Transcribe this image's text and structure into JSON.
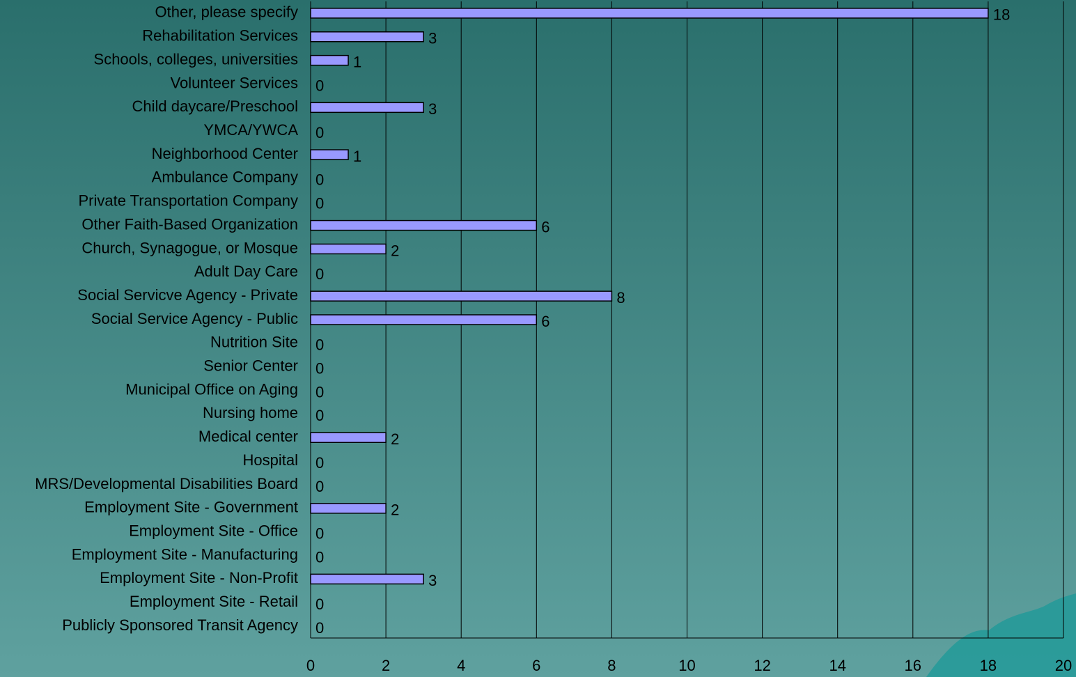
{
  "chart_data": {
    "type": "bar",
    "orientation": "horizontal",
    "categories": [
      "Other, please specify",
      "Rehabilitation Services",
      "Schools, colleges, universities",
      "Volunteer Services",
      "Child daycare/Preschool",
      "YMCA/YWCA",
      "Neighborhood Center",
      "Ambulance Company",
      "Private Transportation Company",
      "Other Faith-Based Organization",
      "Church, Synagogue, or Mosque",
      "Adult Day Care",
      "Social Servicve Agency - Private",
      "Social Service Agency - Public",
      "Nutrition Site",
      "Senior Center",
      "Municipal Office on Aging",
      "Nursing home",
      "Medical center",
      "Hospital",
      "MRS/Developmental Disabilities Board",
      "Employment Site - Government",
      "Employment Site - Office",
      "Employment Site - Manufacturing",
      "Employment Site - Non-Profit",
      "Employment Site - Retail",
      "Publicly Sponsored Transit Agency"
    ],
    "values": [
      18,
      3,
      1,
      0,
      3,
      0,
      1,
      0,
      0,
      6,
      2,
      0,
      8,
      6,
      0,
      0,
      0,
      0,
      2,
      0,
      0,
      2,
      0,
      0,
      3,
      0,
      0
    ],
    "color": "#9999ff",
    "xlim": [
      0,
      20
    ],
    "xticks": [
      0,
      2,
      4,
      6,
      8,
      10,
      12,
      14,
      16,
      18,
      20
    ],
    "grid": true
  }
}
